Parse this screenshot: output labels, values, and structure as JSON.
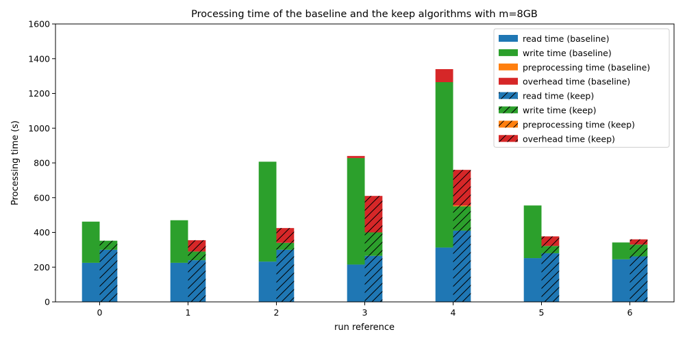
{
  "chart_data": {
    "type": "bar",
    "stacked": true,
    "grouped": true,
    "title": "Processing time of the baseline and the keep algorithms with m=8GB",
    "xlabel": "run reference",
    "ylabel": "Processing time (s)",
    "ylim": [
      0,
      1600
    ],
    "yticks": [
      "0",
      "200",
      "400",
      "600",
      "800",
      "1000",
      "1200",
      "1400",
      "1600"
    ],
    "categories": [
      "0",
      "1",
      "2",
      "3",
      "4",
      "5",
      "6"
    ],
    "grid": false,
    "legend_position": "top-right",
    "colors": {
      "read": "#1f77b4",
      "write": "#2ca02c",
      "preprocessing": "#ff7f0e",
      "overhead": "#d62728"
    },
    "groups": [
      {
        "name": "baseline",
        "hatch": false,
        "components": [
          {
            "name": "read time (baseline)",
            "key": "read",
            "values": [
              225,
              225,
              232,
              215,
              313,
              252,
              245
            ]
          },
          {
            "name": "write time (baseline)",
            "key": "write",
            "values": [
              237,
              245,
              575,
              613,
              952,
              303,
              97
            ]
          },
          {
            "name": "preprocessing time (baseline)",
            "key": "preprocessing",
            "values": [
              0,
              0,
              0,
              0,
              0,
              0,
              0
            ]
          },
          {
            "name": "overhead time (baseline)",
            "key": "overhead",
            "values": [
              0,
              0,
              0,
              12,
              75,
              0,
              0
            ]
          }
        ]
      },
      {
        "name": "keep",
        "hatch": true,
        "components": [
          {
            "name": "read time (keep)",
            "key": "read",
            "values": [
              300,
              240,
              300,
              265,
              410,
              280,
              262
            ]
          },
          {
            "name": "write time (keep)",
            "key": "write",
            "values": [
              52,
              50,
              40,
              135,
              140,
              42,
              68
            ]
          },
          {
            "name": "preprocessing time (keep)",
            "key": "preprocessing",
            "values": [
              0,
              0,
              0,
              0,
              5,
              0,
              0
            ]
          },
          {
            "name": "overhead time (keep)",
            "key": "overhead",
            "values": [
              0,
              65,
              85,
              210,
              205,
              55,
              30
            ]
          }
        ]
      }
    ]
  }
}
